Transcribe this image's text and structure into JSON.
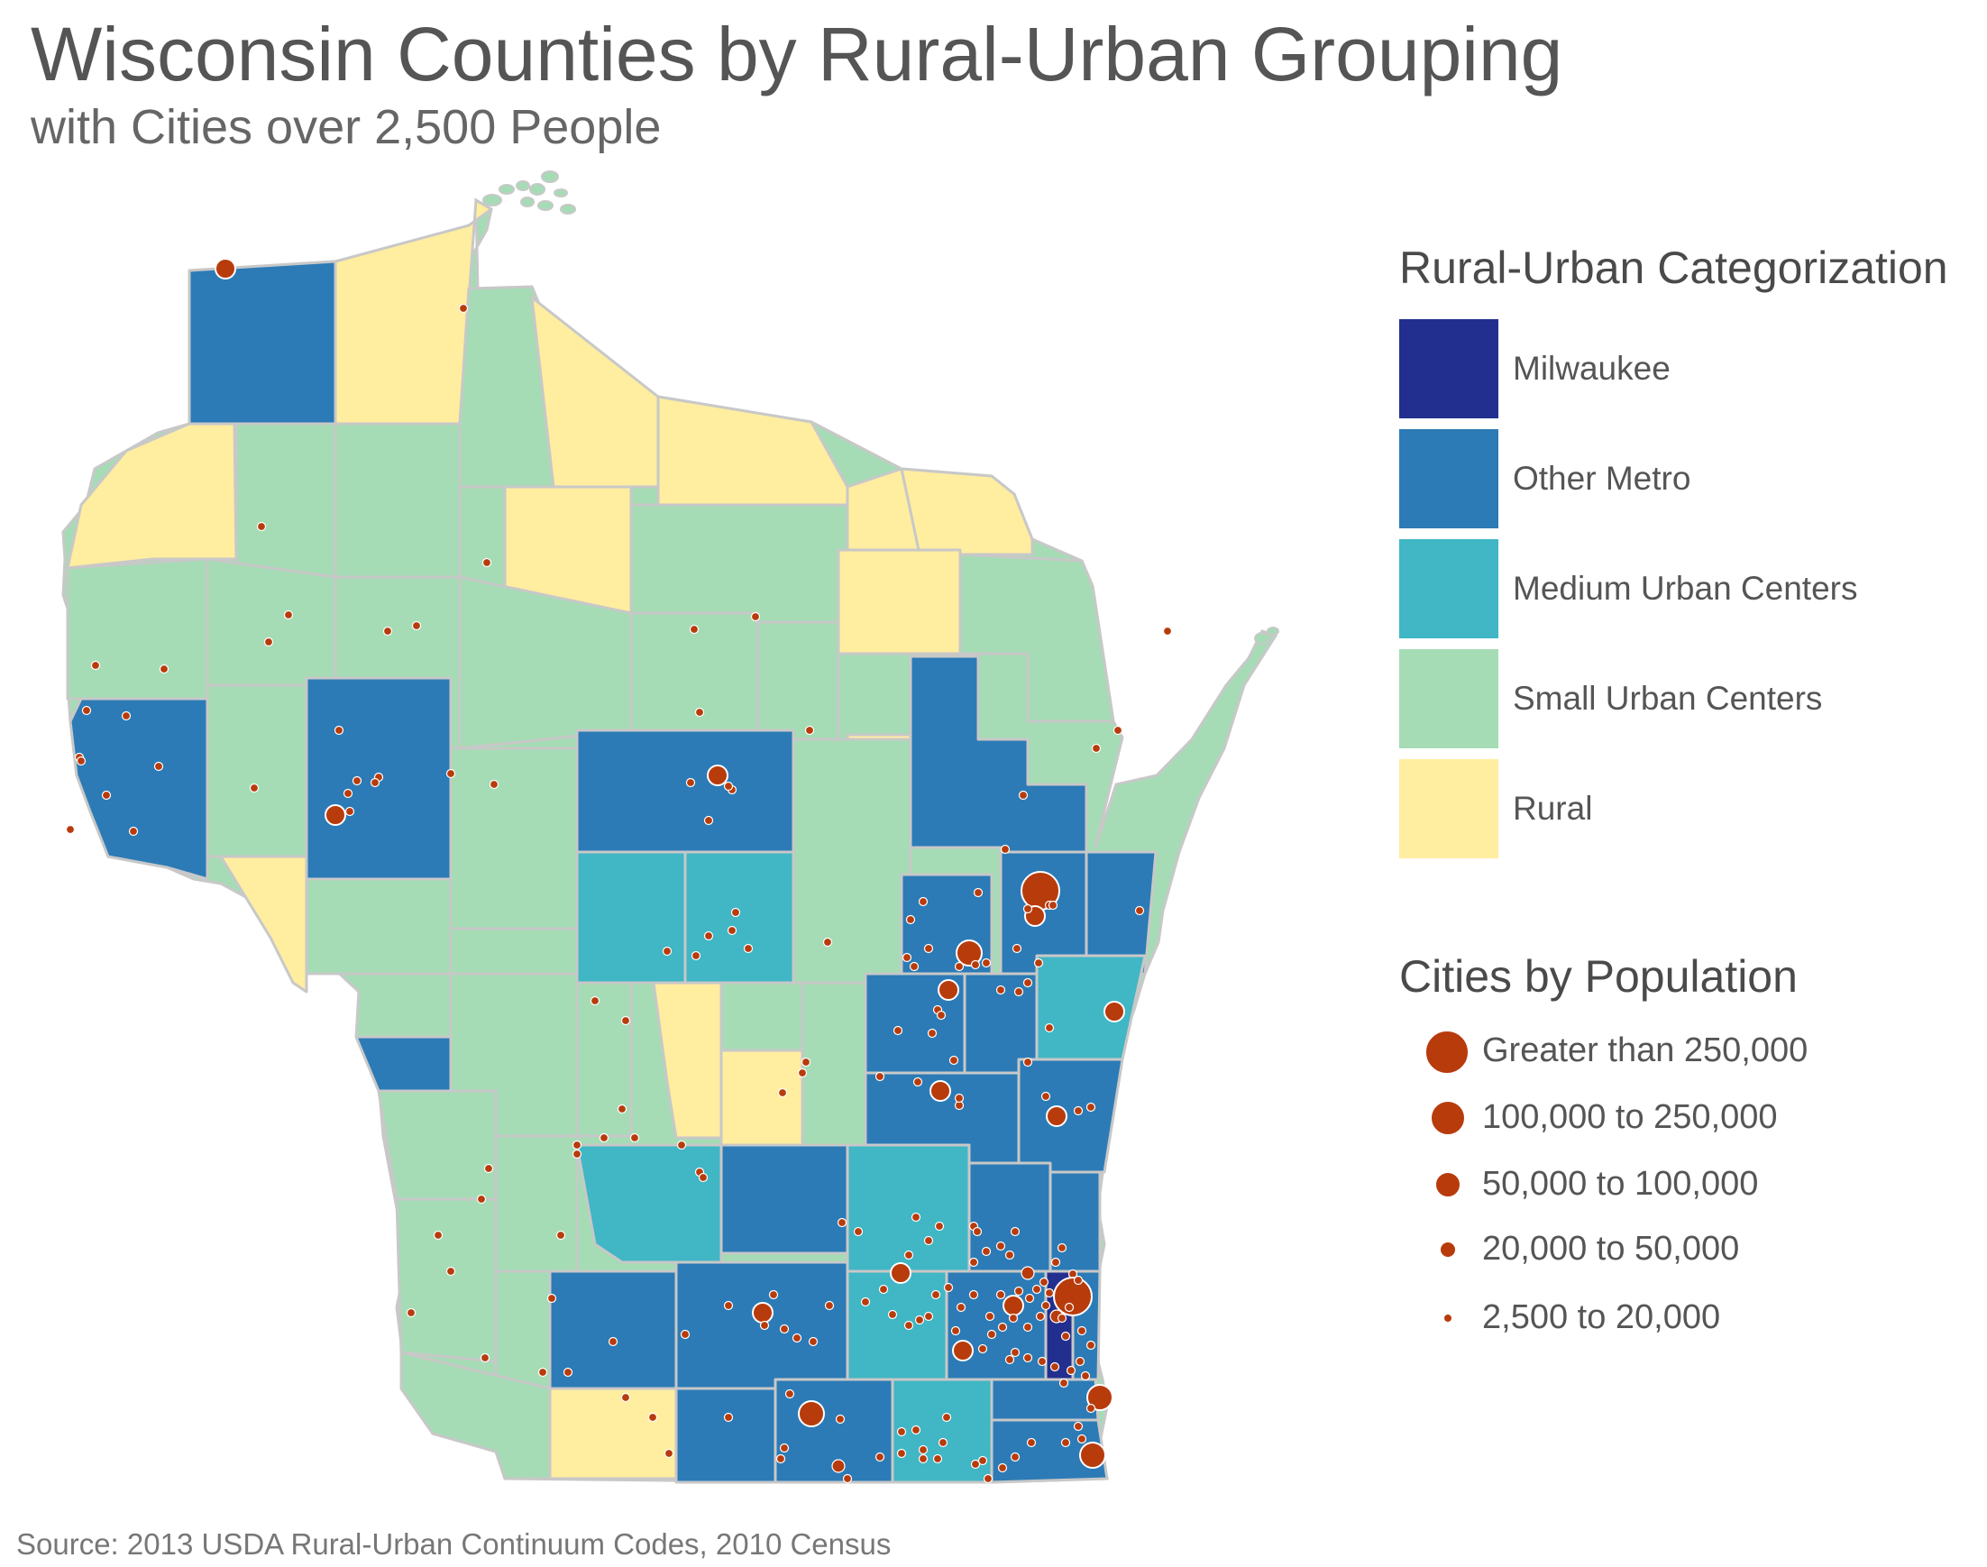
{
  "title": "Wisconsin Counties by Rural-Urban Grouping",
  "subtitle": "with Cities over 2,500 People",
  "source": "Source: 2013 USDA Rural-Urban Continuum Codes, 2010 Census",
  "colors": {
    "milwaukee": "#232f8e",
    "other_metro": "#2c7bb6",
    "medium_urban": "#41b6c4",
    "small_urban": "#a5dcb5",
    "rural": "#ffeda0",
    "city": "#b83b0c",
    "border": "#c8c8c8"
  },
  "legend": {
    "categories_title": "Rural-Urban Categorization",
    "categories": [
      {
        "label": "Milwaukee",
        "color": "#232f8e"
      },
      {
        "label": "Other Metro",
        "color": "#2c7bb6"
      },
      {
        "label": "Medium Urban Centers",
        "color": "#41b6c4"
      },
      {
        "label": "Small Urban Centers",
        "color": "#a5dcb5"
      },
      {
        "label": "Rural",
        "color": "#ffeda0"
      }
    ],
    "population_title": "Cities by Population",
    "population_classes": [
      {
        "label": "Greater than 250,000"
      },
      {
        "label": "100,000 to 250,000"
      },
      {
        "label": "50,000 to 100,000"
      },
      {
        "label": "20,000 to 50,000"
      },
      {
        "label": "2,500 to 20,000"
      }
    ]
  }
}
